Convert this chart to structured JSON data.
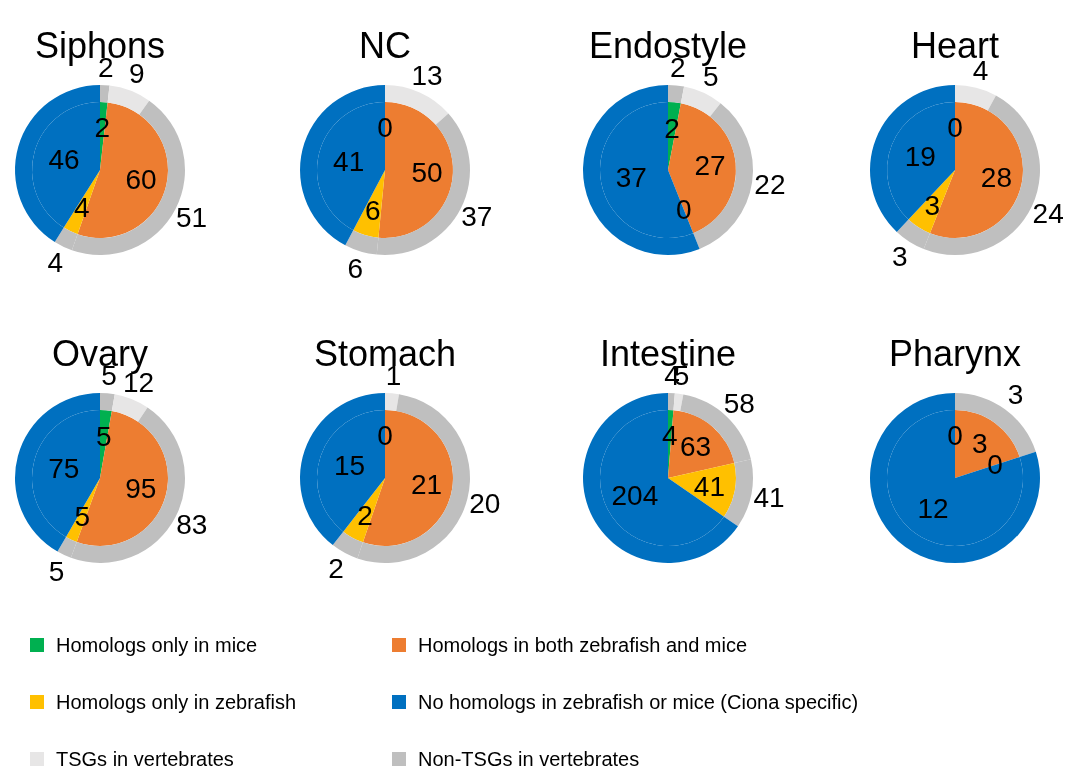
{
  "chart_data": [
    {
      "type": "pie",
      "title": "Siphons",
      "legend": "bottom",
      "categories": [
        "Homologs only in mice",
        "Homologs in both zebrafish and mice",
        "Homologs only in zebrafish",
        "No homologs in zebrafish or mice (Ciona specific)"
      ],
      "values": [
        2,
        60,
        4,
        46
      ],
      "value_labels": [
        "2",
        "60",
        "4",
        "46"
      ],
      "colors": [
        "#00b050",
        "#ed7d31",
        "#ffc000",
        "#0070c0"
      ]
    },
    {
      "type": "pie",
      "title": "NC",
      "categories": [
        null,
        null,
        null,
        null
      ],
      "values": [
        0,
        50,
        6,
        41
      ],
      "value_labels": [
        "0",
        "50",
        "6",
        "41"
      ],
      "colors": [
        "#00b050",
        "#ed7d31",
        "#ffc000",
        "#0070c0"
      ]
    },
    {
      "type": "pie",
      "title": "Endostyle",
      "categories": [
        null,
        null,
        null,
        null
      ],
      "values": [
        2,
        27,
        0,
        37
      ],
      "value_labels": [
        "2",
        "27",
        "0",
        "37"
      ],
      "colors": [
        "#00b050",
        "#ed7d31",
        "#ffc000",
        "#0070c0"
      ]
    },
    {
      "type": "pie",
      "title": "Heart",
      "categories": [
        null,
        null,
        null,
        null
      ],
      "values": [
        0,
        28,
        3,
        19
      ],
      "value_labels": [
        "0",
        "28",
        "3",
        "19"
      ],
      "colors": [
        "#00b050",
        "#ed7d31",
        "#ffc000",
        "#0070c0"
      ]
    },
    {
      "type": "pie",
      "title": "Ovary",
      "categories": [
        null,
        null,
        null,
        null
      ],
      "values": [
        5,
        95,
        5,
        75
      ],
      "value_labels": [
        "5",
        "95",
        "5",
        "75"
      ],
      "colors": [
        "#00b050",
        "#ed7d31",
        "#ffc000",
        "#0070c0"
      ]
    },
    {
      "type": "pie",
      "title": "Stomach",
      "categories": [
        null,
        null,
        null,
        null
      ],
      "values": [
        0,
        21,
        2,
        15
      ],
      "value_labels": [
        "0",
        "21",
        "2",
        "15"
      ],
      "colors": [
        "#00b050",
        "#ed7d31",
        "#ffc000",
        "#0070c0"
      ]
    },
    {
      "type": "pie",
      "title": "Intestine",
      "categories": [
        null,
        null,
        null,
        null
      ],
      "values": [
        4,
        63,
        41,
        204
      ],
      "value_labels": [
        "4",
        "63",
        "41",
        "204"
      ],
      "colors": [
        "#00b050",
        "#ed7d31",
        "#ffc000",
        "#0070c0"
      ]
    },
    {
      "type": "pie",
      "title": "Pharynx",
      "categories": [
        null,
        null,
        null,
        null
      ],
      "values": [
        0,
        3,
        0,
        12
      ],
      "value_labels": [
        "0",
        "3",
        "0",
        "12"
      ],
      "colors": [
        "#00b050",
        "#ed7d31",
        "#ffc000",
        "#0070c0"
      ]
    },
    {
      "type": "donut",
      "legend": "bottom",
      "categories": [
        "Non-TSGs in vertebrates",
        "TSGs in vertebrates",
        null,
        null,
        null
      ],
      "values": [
        2,
        9,
        51,
        4,
        46
      ],
      "value_labels": [
        "2",
        "9",
        "51",
        "4",
        null
      ],
      "colors": [
        "#bfbfbf",
        "#e7e6e6",
        "#bfbfbf",
        "#bfbfbf",
        "#0070c0"
      ]
    },
    {
      "type": "donut",
      "categories": [
        null,
        null,
        null,
        null,
        null
      ],
      "values": [
        0,
        13,
        37,
        6,
        41
      ],
      "value_labels": [
        null,
        "13",
        "37",
        "6",
        null
      ],
      "colors": [
        "#bfbfbf",
        "#e7e6e6",
        "#bfbfbf",
        "#bfbfbf",
        "#0070c0"
      ]
    },
    {
      "type": "donut",
      "categories": [
        null,
        null,
        null,
        null,
        null
      ],
      "values": [
        2,
        5,
        22,
        0,
        37
      ],
      "value_labels": [
        "2",
        "5",
        "22",
        null,
        null
      ],
      "colors": [
        "#bfbfbf",
        "#e7e6e6",
        "#bfbfbf",
        "#bfbfbf",
        "#0070c0"
      ]
    },
    {
      "type": "donut",
      "categories": [
        null,
        null,
        null,
        null,
        null
      ],
      "values": [
        0,
        4,
        24,
        3,
        19
      ],
      "value_labels": [
        null,
        "4",
        "24",
        "3",
        null
      ],
      "colors": [
        "#bfbfbf",
        "#e7e6e6",
        "#bfbfbf",
        "#bfbfbf",
        "#0070c0"
      ]
    },
    {
      "type": "donut",
      "categories": [
        null,
        null,
        null,
        null,
        null
      ],
      "values": [
        5,
        12,
        83,
        5,
        75
      ],
      "value_labels": [
        "5",
        "12",
        "83",
        "5",
        null
      ],
      "colors": [
        "#bfbfbf",
        "#e7e6e6",
        "#bfbfbf",
        "#bfbfbf",
        "#0070c0"
      ]
    },
    {
      "type": "donut",
      "categories": [
        null,
        null,
        null,
        null,
        null
      ],
      "values": [
        0,
        1,
        20,
        2,
        15
      ],
      "value_labels": [
        null,
        "1",
        "20",
        "2",
        null
      ],
      "colors": [
        "#bfbfbf",
        "#e7e6e6",
        "#bfbfbf",
        "#bfbfbf",
        "#0070c0"
      ]
    },
    {
      "type": "donut",
      "categories": [
        null,
        null,
        null,
        null,
        null
      ],
      "values": [
        4,
        5,
        58,
        41,
        204
      ],
      "value_labels": [
        "4",
        "5",
        "58",
        "41",
        null
      ],
      "colors": [
        "#bfbfbf",
        "#e7e6e6",
        "#bfbfbf",
        "#bfbfbf",
        "#0070c0"
      ]
    },
    {
      "type": "donut",
      "categories": [
        null,
        null,
        null,
        null,
        null
      ],
      "values": [
        0,
        0,
        3,
        0,
        12
      ],
      "value_labels": [
        null,
        null,
        "3",
        null,
        null
      ],
      "colors": [
        "#bfbfbf",
        "#e7e6e6",
        "#bfbfbf",
        "#bfbfbf",
        "#0070c0"
      ]
    }
  ]
}
